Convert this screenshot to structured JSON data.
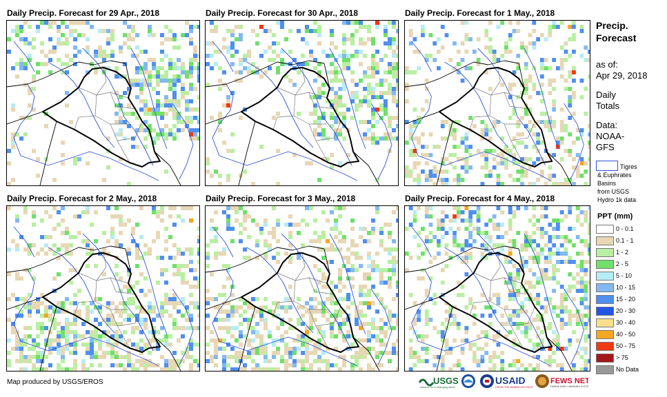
{
  "panels": [
    {
      "title": "Daily Precip. Forecast for 29 Apr., 2018"
    },
    {
      "title": "Daily Precip. Forecast for 30 Apr., 2018"
    },
    {
      "title": "Daily Precip. Forecast for 1 May., 2018"
    },
    {
      "title": "Daily Precip. Forecast for 2 May., 2018"
    },
    {
      "title": "Daily Precip. Forecast for 3 May., 2018"
    },
    {
      "title": "Daily Precip. Forecast for 4 May., 2018"
    }
  ],
  "sidebar": {
    "title_line1": "Precip.",
    "title_line2": "Forecast",
    "asof_label": "as of:",
    "asof_date": "Apr 29, 2018",
    "daily_line1": "Daily",
    "daily_line2": "Totals",
    "data_line1": "Data:",
    "data_line2": "NOAA-",
    "data_line3": "GFS"
  },
  "basin_legend": {
    "line1": "Tigres",
    "line2": "& Euphrates",
    "line3": "Basins",
    "line4": "from USGS",
    "line5": "Hydro 1k data",
    "outline_color": "#2f54d6"
  },
  "legend": {
    "title": "PPT (mm)",
    "items": [
      {
        "label": "0 - 0.1",
        "color": "#ffffff"
      },
      {
        "label": "0.1 - 1",
        "color": "#e8d7b4"
      },
      {
        "label": "1 - 2",
        "color": "#b9efa2"
      },
      {
        "label": "2 - 5",
        "color": "#6fe06a"
      },
      {
        "label": "5 - 10",
        "color": "#b6ecf5"
      },
      {
        "label": "10 - 15",
        "color": "#83b9f2"
      },
      {
        "label": "15 - 20",
        "color": "#4f8ff0"
      },
      {
        "label": "20 - 30",
        "color": "#2456e6"
      },
      {
        "label": "30 - 40",
        "color": "#f8e08a"
      },
      {
        "label": "40 - 50",
        "color": "#f5a623"
      },
      {
        "label": "50 - 75",
        "color": "#f03a12"
      },
      {
        "label": "> 75",
        "color": "#a5171a"
      },
      {
        "label": "No Data",
        "color": "#999999"
      }
    ]
  },
  "footer": {
    "credit": "Map produced by USGS/EROS",
    "logos": [
      "USGS",
      "NOAA",
      "USAID",
      "FEWS NET"
    ]
  }
}
